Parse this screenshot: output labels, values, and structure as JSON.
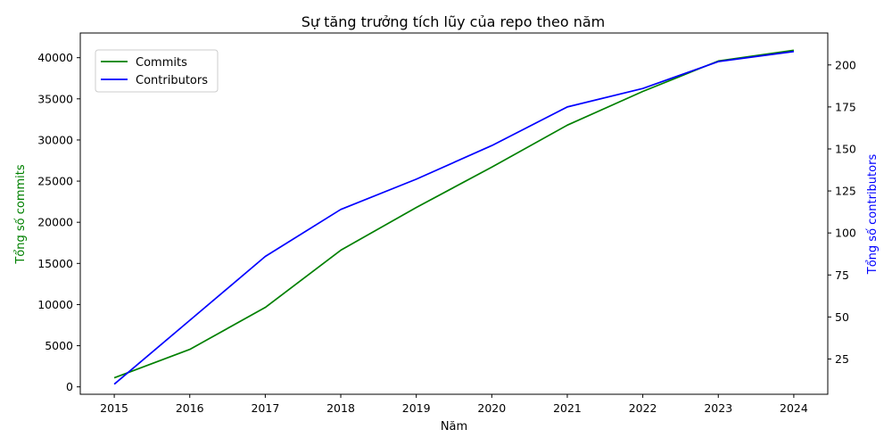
{
  "chart_data": {
    "type": "line",
    "title": "Sự tăng trưởng tích lũy của repo theo năm",
    "xlabel": "Năm",
    "ylabel_left": "Tổng số commits",
    "ylabel_right": "Tổng số contributors",
    "x": [
      2015,
      2016,
      2017,
      2018,
      2019,
      2020,
      2021,
      2022,
      2023,
      2024
    ],
    "xlim": [
      2014.55,
      2024.45
    ],
    "ylim_left": [
      -900,
      43000
    ],
    "ylim_right": [
      4,
      219
    ],
    "yticks_left": [
      0,
      5000,
      10000,
      15000,
      20000,
      25000,
      30000,
      35000,
      40000
    ],
    "yticks_right": [
      25,
      50,
      75,
      100,
      125,
      150,
      175,
      200
    ],
    "series": [
      {
        "name": "Commits",
        "axis": "left",
        "color": "#008000",
        "values": [
          1100,
          4550,
          9650,
          16600,
          21800,
          26700,
          31800,
          35900,
          39600,
          40900
        ]
      },
      {
        "name": "Contributors",
        "axis": "right",
        "color": "#0000ff",
        "values": [
          10,
          48,
          86,
          114,
          132,
          152,
          175,
          186,
          202,
          208
        ]
      }
    ],
    "legend_position": "upper-left",
    "grid": false
  }
}
